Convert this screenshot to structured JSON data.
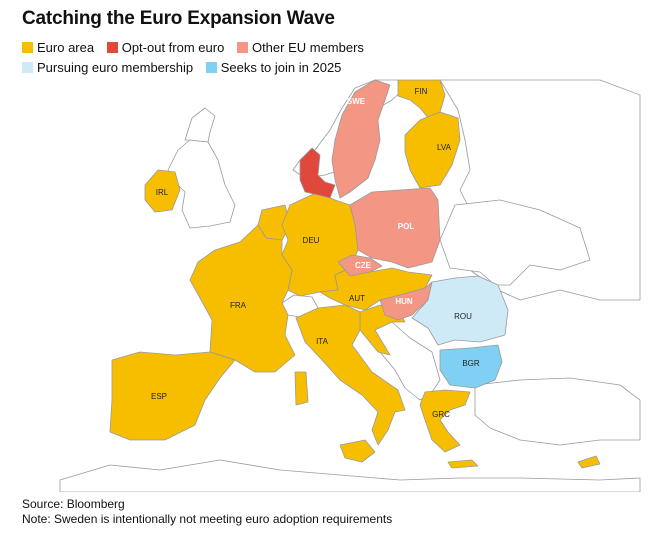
{
  "title": "Catching the Euro Expansion Wave",
  "legend": [
    {
      "label": "Euro area",
      "color": "#F7BE00"
    },
    {
      "label": "Opt-out from euro",
      "color": "#E0483B"
    },
    {
      "label": "Other EU members",
      "color": "#F39684"
    },
    {
      "label": "Pursuing euro membership",
      "color": "#CFEAF7"
    },
    {
      "label": "Seeks to join in 2025",
      "color": "#7FD0F2"
    }
  ],
  "colors": {
    "land": "#FFFFFF",
    "border": "#9A9A9A",
    "euro_area": "#F7BE00",
    "opt_out": "#E0483B",
    "other_eu": "#F39684",
    "pursuing": "#CFEAF7",
    "seeks_2025": "#7FD0F2"
  },
  "countries": {
    "fin": "FIN",
    "swe": "SWE",
    "lva": "LVA",
    "irl": "IRL",
    "deu": "DEU",
    "pol": "POL",
    "cze": "CZE",
    "fra": "FRA",
    "aut": "AUT",
    "hun": "HUN",
    "rou": "ROU",
    "ita": "ITA",
    "bgr": "BGR",
    "esp": "ESP",
    "grc": "GRC"
  },
  "footer": {
    "source": "Source: Bloomberg",
    "note": "Note: Sweden is intentionally not meeting euro adoption requirements"
  }
}
